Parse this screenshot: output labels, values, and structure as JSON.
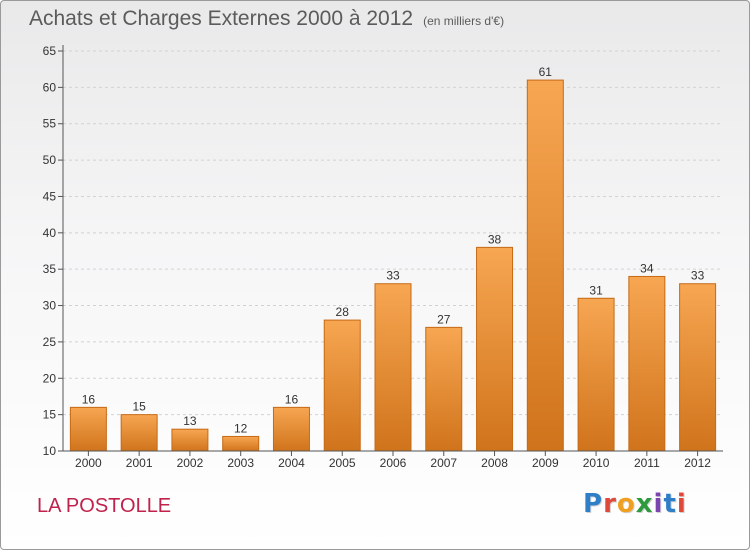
{
  "title": "Achats et Charges Externes 2000 à 2012",
  "subtitle": "(en milliers d'€)",
  "place": "LA POSTOLLE",
  "logo": {
    "letters": [
      "P",
      "r",
      "o",
      "x",
      "i",
      "t",
      "i"
    ],
    "colors": [
      "#2f7fc8",
      "#e0483a",
      "#f0a020",
      "#2e9a3e",
      "#7a45b0",
      "#2f7fc8",
      "#e0483a"
    ]
  },
  "colors": {
    "bar_top": "#f7a652",
    "bar_bottom": "#d0741c",
    "bar_edge": "#c66a15",
    "grid": "#d2d2d2",
    "axis": "#555555",
    "place": "#c0224b"
  },
  "chart_data": {
    "type": "bar",
    "title": "Achats et Charges Externes 2000 à 2012",
    "subtitle": "(en milliers d'€)",
    "xlabel": "",
    "ylabel": "",
    "categories": [
      "2000",
      "2001",
      "2002",
      "2003",
      "2004",
      "2005",
      "2006",
      "2007",
      "2008",
      "2009",
      "2010",
      "2011",
      "2012"
    ],
    "values": [
      16,
      15,
      13,
      12,
      16,
      28,
      33,
      27,
      38,
      61,
      31,
      34,
      33
    ],
    "ylim": [
      10,
      65
    ],
    "yticks": [
      10,
      15,
      20,
      25,
      30,
      35,
      40,
      45,
      50,
      55,
      60,
      65
    ],
    "grid": true,
    "data_labels": true
  }
}
